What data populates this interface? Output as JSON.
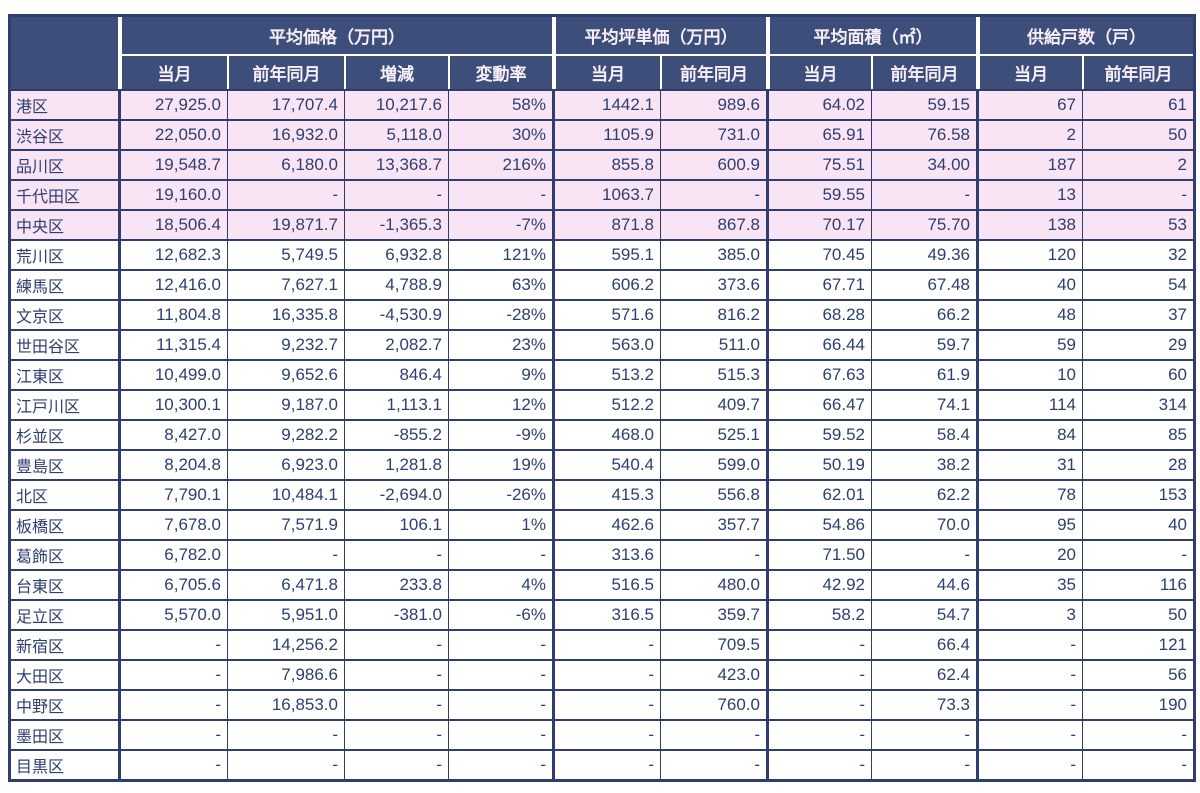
{
  "chart_data": {
    "type": "table",
    "title": "",
    "column_groups": [
      {
        "label": "平均価格（万円）",
        "columns": [
          "当月",
          "前年同月",
          "増減",
          "変動率"
        ]
      },
      {
        "label": "平均坪単価（万円）",
        "columns": [
          "当月",
          "前年同月"
        ]
      },
      {
        "label": "平均面積（㎡）",
        "columns": [
          "当月",
          "前年同月"
        ]
      },
      {
        "label": "供給戸数（戸）",
        "columns": [
          "当月",
          "前年同月"
        ]
      }
    ],
    "rows": [
      {
        "ward": "港区",
        "highlight": true,
        "values": [
          "27,925.0",
          "17,707.4",
          "10,217.6",
          "58%",
          "1442.1",
          "989.6",
          "64.02",
          "59.15",
          "67",
          "61"
        ]
      },
      {
        "ward": "渋谷区",
        "highlight": true,
        "values": [
          "22,050.0",
          "16,932.0",
          "5,118.0",
          "30%",
          "1105.9",
          "731.0",
          "65.91",
          "76.58",
          "2",
          "50"
        ]
      },
      {
        "ward": "品川区",
        "highlight": true,
        "values": [
          "19,548.7",
          "6,180.0",
          "13,368.7",
          "216%",
          "855.8",
          "600.9",
          "75.51",
          "34.00",
          "187",
          "2"
        ]
      },
      {
        "ward": "千代田区",
        "highlight": true,
        "values": [
          "19,160.0",
          "-",
          "-",
          "-",
          "1063.7",
          "-",
          "59.55",
          "-",
          "13",
          "-"
        ]
      },
      {
        "ward": "中央区",
        "highlight": true,
        "values": [
          "18,506.4",
          "19,871.7",
          "-1,365.3",
          "-7%",
          "871.8",
          "867.8",
          "70.17",
          "75.70",
          "138",
          "53"
        ]
      },
      {
        "ward": "荒川区",
        "highlight": false,
        "values": [
          "12,682.3",
          "5,749.5",
          "6,932.8",
          "121%",
          "595.1",
          "385.0",
          "70.45",
          "49.36",
          "120",
          "32"
        ]
      },
      {
        "ward": "練馬区",
        "highlight": false,
        "values": [
          "12,416.0",
          "7,627.1",
          "4,788.9",
          "63%",
          "606.2",
          "373.6",
          "67.71",
          "67.48",
          "40",
          "54"
        ]
      },
      {
        "ward": "文京区",
        "highlight": false,
        "values": [
          "11,804.8",
          "16,335.8",
          "-4,530.9",
          "-28%",
          "571.6",
          "816.2",
          "68.28",
          "66.2",
          "48",
          "37"
        ]
      },
      {
        "ward": "世田谷区",
        "highlight": false,
        "values": [
          "11,315.4",
          "9,232.7",
          "2,082.7",
          "23%",
          "563.0",
          "511.0",
          "66.44",
          "59.7",
          "59",
          "29"
        ]
      },
      {
        "ward": "江東区",
        "highlight": false,
        "values": [
          "10,499.0",
          "9,652.6",
          "846.4",
          "9%",
          "513.2",
          "515.3",
          "67.63",
          "61.9",
          "10",
          "60"
        ]
      },
      {
        "ward": "江戸川区",
        "highlight": false,
        "values": [
          "10,300.1",
          "9,187.0",
          "1,113.1",
          "12%",
          "512.2",
          "409.7",
          "66.47",
          "74.1",
          "114",
          "314"
        ]
      },
      {
        "ward": "杉並区",
        "highlight": false,
        "values": [
          "8,427.0",
          "9,282.2",
          "-855.2",
          "-9%",
          "468.0",
          "525.1",
          "59.52",
          "58.4",
          "84",
          "85"
        ]
      },
      {
        "ward": "豊島区",
        "highlight": false,
        "values": [
          "8,204.8",
          "6,923.0",
          "1,281.8",
          "19%",
          "540.4",
          "599.0",
          "50.19",
          "38.2",
          "31",
          "28"
        ]
      },
      {
        "ward": "北区",
        "highlight": false,
        "values": [
          "7,790.1",
          "10,484.1",
          "-2,694.0",
          "-26%",
          "415.3",
          "556.8",
          "62.01",
          "62.2",
          "78",
          "153"
        ]
      },
      {
        "ward": "板橋区",
        "highlight": false,
        "values": [
          "7,678.0",
          "7,571.9",
          "106.1",
          "1%",
          "462.6",
          "357.7",
          "54.86",
          "70.0",
          "95",
          "40"
        ]
      },
      {
        "ward": "葛飾区",
        "highlight": false,
        "values": [
          "6,782.0",
          "-",
          "-",
          "-",
          "313.6",
          "-",
          "71.50",
          "-",
          "20",
          "-"
        ]
      },
      {
        "ward": "台東区",
        "highlight": false,
        "values": [
          "6,705.6",
          "6,471.8",
          "233.8",
          "4%",
          "516.5",
          "480.0",
          "42.92",
          "44.6",
          "35",
          "116"
        ]
      },
      {
        "ward": "足立区",
        "highlight": false,
        "values": [
          "5,570.0",
          "5,951.0",
          "-381.0",
          "-6%",
          "316.5",
          "359.7",
          "58.2",
          "54.7",
          "3",
          "50"
        ]
      },
      {
        "ward": "新宿区",
        "highlight": false,
        "values": [
          "-",
          "14,256.2",
          "-",
          "-",
          "-",
          "709.5",
          "-",
          "66.4",
          "-",
          "121"
        ]
      },
      {
        "ward": "大田区",
        "highlight": false,
        "values": [
          "-",
          "7,986.6",
          "-",
          "-",
          "-",
          "423.0",
          "-",
          "62.4",
          "-",
          "56"
        ]
      },
      {
        "ward": "中野区",
        "highlight": false,
        "values": [
          "-",
          "16,853.0",
          "-",
          "-",
          "-",
          "760.0",
          "-",
          "73.3",
          "-",
          "190"
        ]
      },
      {
        "ward": "墨田区",
        "highlight": false,
        "values": [
          "-",
          "-",
          "-",
          "-",
          "-",
          "-",
          "-",
          "-",
          "-",
          "-"
        ]
      },
      {
        "ward": "目黒区",
        "highlight": false,
        "values": [
          "-",
          "-",
          "-",
          "-",
          "-",
          "-",
          "-",
          "-",
          "-",
          "-"
        ]
      }
    ]
  },
  "colors": {
    "header_bg": "#3e4e7a",
    "header_text": "#f8eff8",
    "border_navy": "#2f3e6e",
    "body_text": "#2e3e70",
    "highlight_row_bg": "#f8e4f4",
    "row_bg": "#ffffff",
    "header_separator": "#ffffff"
  }
}
